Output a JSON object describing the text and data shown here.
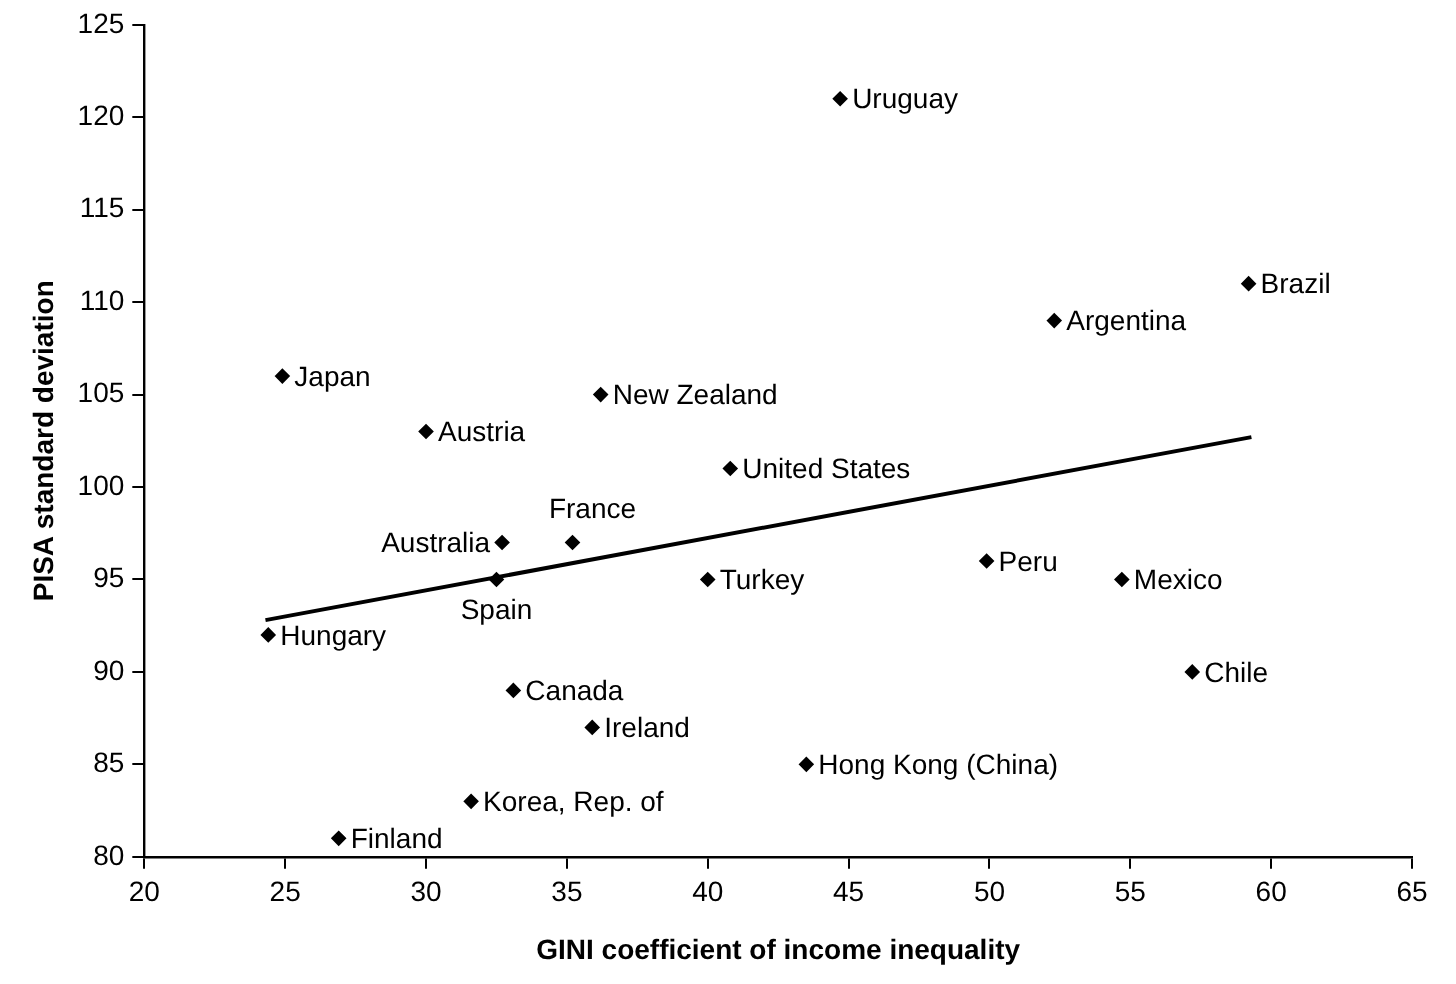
{
  "chart_data": {
    "type": "scatter",
    "xlabel": "GINI coefficient of income inequality",
    "ylabel": "PISA standard deviation",
    "xlim": [
      20,
      65
    ],
    "xticks": [
      20,
      25,
      30,
      35,
      40,
      45,
      50,
      55,
      60,
      65
    ],
    "ylim": [
      80,
      125
    ],
    "yticks": [
      80,
      85,
      90,
      95,
      100,
      105,
      110,
      115,
      120,
      125
    ],
    "grid": false,
    "legend": false,
    "series": [
      {
        "marker": "diamond",
        "color": "#000000",
        "x": [
          24.9,
          30.0,
          36.2,
          40.8,
          44.7,
          52.3,
          59.2,
          32.7,
          35.2,
          32.5,
          40.0,
          24.4,
          33.1,
          35.9,
          31.6,
          26.9,
          49.9,
          54.7,
          57.2,
          43.5
        ],
        "values": [
          106,
          103,
          105,
          101,
          121,
          109,
          111,
          97,
          97,
          95,
          95,
          92,
          89,
          87,
          83,
          81,
          96,
          95,
          90,
          85
        ]
      },
      {
        "type": "line",
        "color": "#000000",
        "x": [
          24.3,
          59.3
        ],
        "values": [
          92.8,
          102.7
        ]
      }
    ],
    "annotations": [
      {
        "text": "Japan",
        "x": 24.9,
        "y": 106
      },
      {
        "text": "Austria",
        "x": 30.0,
        "y": 103
      },
      {
        "text": "New Zealand",
        "x": 36.2,
        "y": 105
      },
      {
        "text": "United States",
        "x": 40.8,
        "y": 101
      },
      {
        "text": "Uruguay",
        "x": 44.7,
        "y": 121
      },
      {
        "text": "Argentina",
        "x": 52.3,
        "y": 109
      },
      {
        "text": "Brazil",
        "x": 59.2,
        "y": 111
      },
      {
        "text": "Australia",
        "x": 32.7,
        "y": 97
      },
      {
        "text": "France",
        "x": 35.2,
        "y": 97
      },
      {
        "text": "Spain",
        "x": 32.5,
        "y": 95
      },
      {
        "text": "Turkey",
        "x": 40.0,
        "y": 95
      },
      {
        "text": "Hungary",
        "x": 24.4,
        "y": 92
      },
      {
        "text": "Canada",
        "x": 33.1,
        "y": 89
      },
      {
        "text": "Ireland",
        "x": 35.9,
        "y": 87
      },
      {
        "text": "Korea, Rep. of",
        "x": 31.6,
        "y": 83
      },
      {
        "text": "Finland",
        "x": 26.9,
        "y": 81
      },
      {
        "text": "Peru",
        "x": 49.9,
        "y": 96
      },
      {
        "text": "Mexico",
        "x": 54.7,
        "y": 95
      },
      {
        "text": "Chile",
        "x": 57.2,
        "y": 90
      },
      {
        "text": "Hong Kong (China)",
        "x": 43.5,
        "y": 85
      }
    ]
  }
}
